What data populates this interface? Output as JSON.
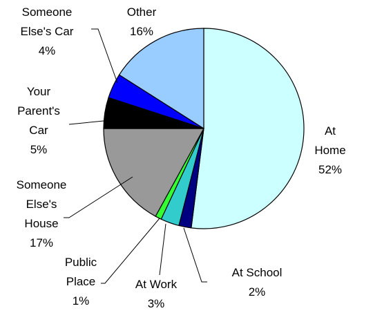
{
  "chart_data": {
    "type": "pie",
    "categories": [
      "At Home",
      "At School",
      "At Work",
      "Public\nPlace",
      "Someone\nElse's\nHouse",
      "Your\nParent's\nCar",
      "Someone\nElse's Car",
      "Other"
    ],
    "values": [
      52,
      2,
      3,
      1,
      17,
      5,
      4,
      16
    ],
    "value_labels": [
      "52%",
      "2%",
      "3%",
      "1%",
      "17%",
      "5%",
      "4%",
      "16%"
    ],
    "colors": [
      "#ccffff",
      "#000080",
      "#33cccc",
      "#33ff33",
      "#999999",
      "#000000",
      "#0000ff",
      "#99ccff"
    ]
  }
}
